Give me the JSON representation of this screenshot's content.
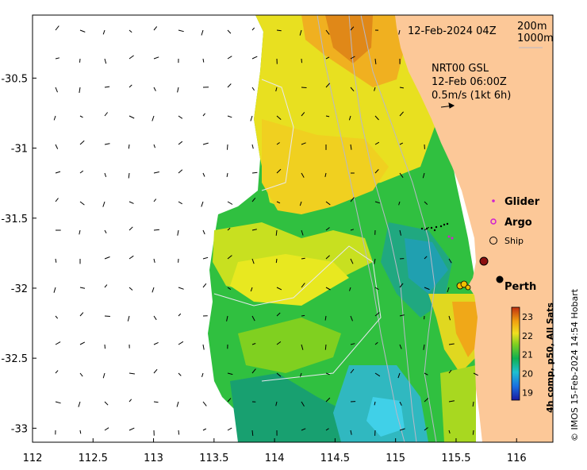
{
  "map": {
    "date_label": "12-Feb-2024 04Z",
    "depth_contours": [
      "200m",
      "1000m"
    ],
    "current_product": "NRT00 GSL",
    "current_time": "12-Feb 06:00Z",
    "current_scale": "0.5m/s (1kt 6h)",
    "x_ticks": [
      "112",
      "112.5",
      "113",
      "113.5",
      "114",
      "114.5",
      "115",
      "115.5",
      "116"
    ],
    "y_ticks": [
      "-30.5",
      "-31",
      "-31.5",
      "-32",
      "-32.5",
      "-33"
    ],
    "x_tick_values": [
      112,
      112.5,
      113,
      113.5,
      114,
      114.5,
      115,
      115.5,
      116
    ],
    "y_tick_values": [
      -30.5,
      -31,
      -31.5,
      -32,
      -32.5,
      -33
    ],
    "lon_range": [
      112,
      116.3
    ],
    "lat_range": [
      -33.1,
      -30.05
    ]
  },
  "legend": {
    "glider": "Glider",
    "argo": "Argo",
    "ship": "Ship",
    "glider_color": "#d020d0",
    "argo_color": "#d020d0",
    "ship_color": "#000000"
  },
  "places": {
    "perth": "Perth"
  },
  "colorbar": {
    "label": "4h comp, p50, All Sats",
    "ticks": [
      "23",
      "22",
      "21",
      "20",
      "19"
    ],
    "tick_values": [
      23,
      22,
      21,
      20,
      19
    ],
    "range": [
      18.6,
      23.5
    ]
  },
  "credit": "© IMOS 15-Feb-2024 14:54 Hobart",
  "colors": {
    "land": "#fcc898",
    "sst_cold": "#1010a0",
    "sst_warm": "#c04000"
  }
}
